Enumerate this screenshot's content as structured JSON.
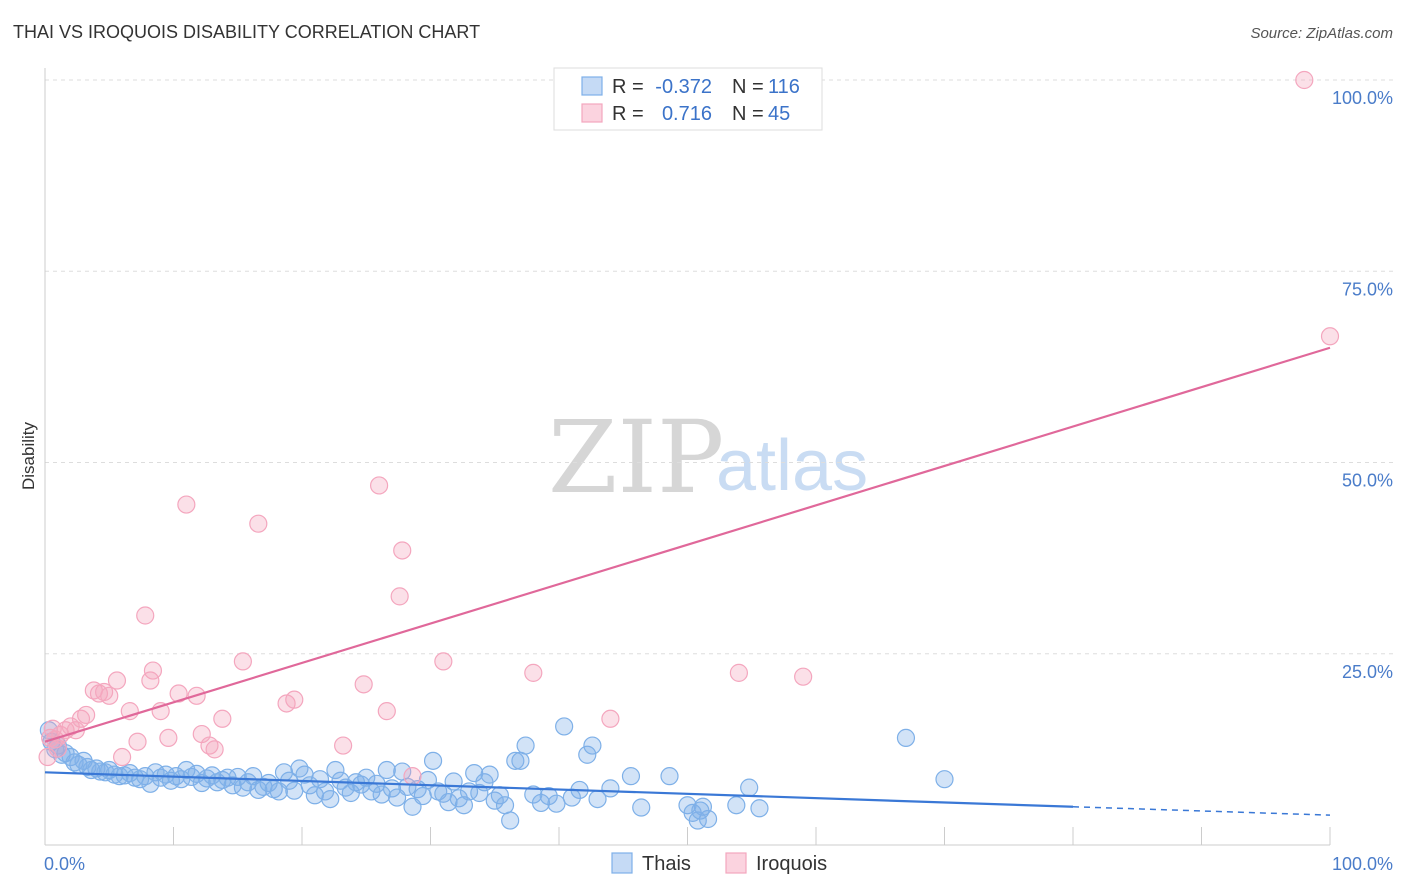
{
  "title": "THAI VS IROQUOIS DISABILITY CORRELATION CHART",
  "source": "Source: ZipAtlas.com",
  "watermark": {
    "zip": "ZIP",
    "atlas": "atlas"
  },
  "legend": {
    "rows": [
      {
        "r_label": "R =",
        "r_value": "-0.372",
        "n_label": "N =",
        "n_value": "116",
        "color": "#7eb0e8"
      },
      {
        "r_label": "R =",
        "r_value": "0.716",
        "n_label": "N =",
        "n_value": "45",
        "color": "#f4a6be"
      }
    ]
  },
  "bottom_legend": [
    {
      "label": "Thais",
      "color": "#7eb0e8"
    },
    {
      "label": "Iroquois",
      "color": "#f4a6be"
    }
  ],
  "chart_data": {
    "type": "scatter",
    "title": "THAI VS IROQUOIS DISABILITY CORRELATION CHART",
    "xlabel": "",
    "ylabel": "Disability",
    "xlim": [
      0,
      100
    ],
    "ylim": [
      0,
      100
    ],
    "x_tick_labels": [
      "0.0%",
      "100.0%"
    ],
    "y_ticks": [
      {
        "value": 25,
        "label": "25.0%"
      },
      {
        "value": 50,
        "label": "50.0%"
      },
      {
        "value": 75,
        "label": "75.0%"
      },
      {
        "value": 100,
        "label": "100.0%"
      }
    ],
    "series": [
      {
        "name": "Thais",
        "color": "#7eb0e8",
        "line_color": "#3a78d6",
        "trend": {
          "x0": 0,
          "y0": 9.5,
          "x1": 80,
          "y1": 5.0,
          "dash_to_x": 100,
          "dash_to_y": 3.9
        },
        "points": [
          [
            0.3,
            15.0
          ],
          [
            0.5,
            13.5
          ],
          [
            0.8,
            12.5
          ],
          [
            1.0,
            13.0
          ],
          [
            1.3,
            11.8
          ],
          [
            1.6,
            12.0
          ],
          [
            2.0,
            11.5
          ],
          [
            2.3,
            10.8
          ],
          [
            2.6,
            10.5
          ],
          [
            3.0,
            11.0
          ],
          [
            3.3,
            10.2
          ],
          [
            3.6,
            9.8
          ],
          [
            4.0,
            10.0
          ],
          [
            4.3,
            9.6
          ],
          [
            4.7,
            9.5
          ],
          [
            5.0,
            9.8
          ],
          [
            5.4,
            9.2
          ],
          [
            5.8,
            9.0
          ],
          [
            6.2,
            9.1
          ],
          [
            6.6,
            9.4
          ],
          [
            7.0,
            8.8
          ],
          [
            7.4,
            8.6
          ],
          [
            7.8,
            9.0
          ],
          [
            8.2,
            8.0
          ],
          [
            8.6,
            9.5
          ],
          [
            9.0,
            8.8
          ],
          [
            9.4,
            9.2
          ],
          [
            9.8,
            8.4
          ],
          [
            10.2,
            9.0
          ],
          [
            10.6,
            8.6
          ],
          [
            11.0,
            9.8
          ],
          [
            11.4,
            8.9
          ],
          [
            11.8,
            9.3
          ],
          [
            12.2,
            8.1
          ],
          [
            12.6,
            8.7
          ],
          [
            13.0,
            9.1
          ],
          [
            13.4,
            8.2
          ],
          [
            13.8,
            8.5
          ],
          [
            14.2,
            8.8
          ],
          [
            14.6,
            7.8
          ],
          [
            15.0,
            8.9
          ],
          [
            15.4,
            7.5
          ],
          [
            15.8,
            8.2
          ],
          [
            16.2,
            9.0
          ],
          [
            16.6,
            7.2
          ],
          [
            17.0,
            7.6
          ],
          [
            17.4,
            8.1
          ],
          [
            17.8,
            7.3
          ],
          [
            18.2,
            7.0
          ],
          [
            18.6,
            9.5
          ],
          [
            19.0,
            8.4
          ],
          [
            19.4,
            7.1
          ],
          [
            19.8,
            10.0
          ],
          [
            20.2,
            9.2
          ],
          [
            20.6,
            7.8
          ],
          [
            21.0,
            6.5
          ],
          [
            21.4,
            8.6
          ],
          [
            21.8,
            7.0
          ],
          [
            22.2,
            6.0
          ],
          [
            22.6,
            9.8
          ],
          [
            23.0,
            8.4
          ],
          [
            23.4,
            7.5
          ],
          [
            23.8,
            6.8
          ],
          [
            24.2,
            8.2
          ],
          [
            24.6,
            7.9
          ],
          [
            25.0,
            8.8
          ],
          [
            25.4,
            7.0
          ],
          [
            25.8,
            8.0
          ],
          [
            26.2,
            6.6
          ],
          [
            26.6,
            9.8
          ],
          [
            27.0,
            7.4
          ],
          [
            27.4,
            6.2
          ],
          [
            27.8,
            9.6
          ],
          [
            28.2,
            7.6
          ],
          [
            28.6,
            5.0
          ],
          [
            29.0,
            7.3
          ],
          [
            29.4,
            6.4
          ],
          [
            29.8,
            8.5
          ],
          [
            30.2,
            11.0
          ],
          [
            30.6,
            7.0
          ],
          [
            31.0,
            6.7
          ],
          [
            31.4,
            5.6
          ],
          [
            31.8,
            8.3
          ],
          [
            32.2,
            6.1
          ],
          [
            32.6,
            5.2
          ],
          [
            33.0,
            7.0
          ],
          [
            33.4,
            9.4
          ],
          [
            33.8,
            6.8
          ],
          [
            34.2,
            8.2
          ],
          [
            34.6,
            9.2
          ],
          [
            35.0,
            5.8
          ],
          [
            35.4,
            6.5
          ],
          [
            35.8,
            5.2
          ],
          [
            36.2,
            3.2
          ],
          [
            36.6,
            11.0
          ],
          [
            37.0,
            11.0
          ],
          [
            37.4,
            13.0
          ],
          [
            38.0,
            6.6
          ],
          [
            38.6,
            5.5
          ],
          [
            39.2,
            6.4
          ],
          [
            39.8,
            5.4
          ],
          [
            40.4,
            15.5
          ],
          [
            41.0,
            6.2
          ],
          [
            41.6,
            7.2
          ],
          [
            42.2,
            11.8
          ],
          [
            42.6,
            13.0
          ],
          [
            43.0,
            6.0
          ],
          [
            44.0,
            7.4
          ],
          [
            45.6,
            9.0
          ],
          [
            46.4,
            4.9
          ],
          [
            48.6,
            9.0
          ],
          [
            50.0,
            5.2
          ],
          [
            50.4,
            4.2
          ],
          [
            50.8,
            3.2
          ],
          [
            51.2,
            5.0
          ],
          [
            51.6,
            3.4
          ],
          [
            51.0,
            4.5
          ],
          [
            53.8,
            5.2
          ],
          [
            54.8,
            7.5
          ],
          [
            55.6,
            4.8
          ],
          [
            67.0,
            14.0
          ],
          [
            70.0,
            8.6
          ]
        ]
      },
      {
        "name": "Iroquois",
        "color": "#f4a6be",
        "line_color": "#e0689a",
        "trend": {
          "x0": 0,
          "y0": 13.5,
          "x1": 100,
          "y1": 65.0
        },
        "points": [
          [
            0.2,
            11.5
          ],
          [
            0.4,
            14.0
          ],
          [
            0.6,
            15.2
          ],
          [
            0.8,
            13.8
          ],
          [
            1.0,
            12.6
          ],
          [
            1.2,
            14.4
          ],
          [
            1.6,
            15.0
          ],
          [
            2.0,
            15.5
          ],
          [
            2.4,
            15.0
          ],
          [
            2.8,
            16.5
          ],
          [
            3.2,
            17.0
          ],
          [
            3.8,
            20.2
          ],
          [
            4.2,
            19.8
          ],
          [
            4.6,
            20.0
          ],
          [
            5.0,
            19.5
          ],
          [
            5.6,
            21.5
          ],
          [
            6.0,
            11.5
          ],
          [
            6.6,
            17.5
          ],
          [
            7.2,
            13.5
          ],
          [
            7.8,
            30.0
          ],
          [
            8.4,
            22.8
          ],
          [
            8.2,
            21.5
          ],
          [
            9.0,
            17.5
          ],
          [
            9.6,
            14.0
          ],
          [
            10.4,
            19.8
          ],
          [
            11.0,
            44.5
          ],
          [
            11.8,
            19.5
          ],
          [
            12.2,
            14.5
          ],
          [
            12.8,
            13.0
          ],
          [
            13.2,
            12.5
          ],
          [
            13.8,
            16.5
          ],
          [
            15.4,
            24.0
          ],
          [
            16.6,
            42.0
          ],
          [
            18.8,
            18.5
          ],
          [
            19.4,
            19.0
          ],
          [
            23.2,
            13.0
          ],
          [
            24.8,
            21.0
          ],
          [
            26.0,
            47.0
          ],
          [
            26.6,
            17.5
          ],
          [
            27.6,
            32.5
          ],
          [
            27.8,
            38.5
          ],
          [
            28.6,
            9.0
          ],
          [
            31.0,
            24.0
          ],
          [
            38.0,
            22.5
          ],
          [
            44.0,
            16.5
          ],
          [
            54.0,
            22.5
          ],
          [
            59.0,
            22.0
          ],
          [
            98.0,
            100.0
          ],
          [
            100.0,
            66.5
          ]
        ]
      }
    ]
  }
}
